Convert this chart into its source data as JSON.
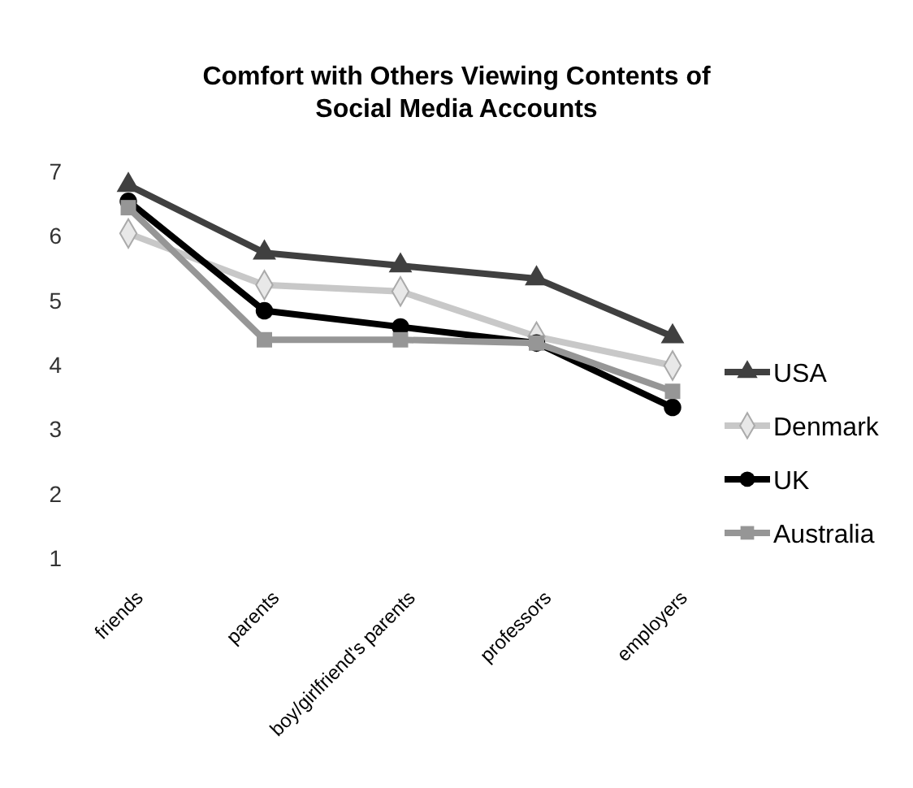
{
  "chart_data": {
    "type": "line",
    "title": "Comfort with Others Viewing Contents of Social Media Accounts",
    "categories": [
      "friends",
      "parents",
      "boy/girlfriend's parents",
      "professors",
      "employers"
    ],
    "ylim": [
      1,
      7
    ],
    "yticks": [
      1,
      2,
      3,
      4,
      5,
      6,
      7
    ],
    "grid": false,
    "legend": "right",
    "series": [
      {
        "name": "USA",
        "color": "#404040",
        "marker": "triangle",
        "values": [
          6.8,
          5.75,
          5.55,
          5.35,
          4.45
        ]
      },
      {
        "name": "Denmark",
        "color": "#c8c8c8",
        "marker": "diamond",
        "values": [
          6.05,
          5.25,
          5.15,
          4.45,
          4.0
        ]
      },
      {
        "name": "UK",
        "color": "#000000",
        "marker": "circle",
        "values": [
          6.55,
          4.85,
          4.6,
          4.35,
          3.35
        ]
      },
      {
        "name": "Australia",
        "color": "#969696",
        "marker": "square",
        "values": [
          6.45,
          4.4,
          4.4,
          4.35,
          3.6
        ]
      }
    ]
  }
}
